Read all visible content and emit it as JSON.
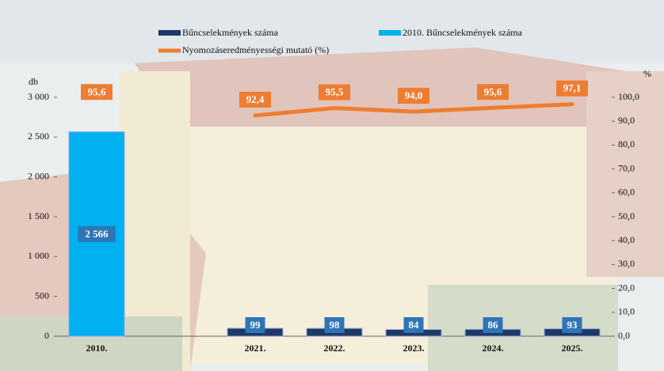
{
  "chart_data": {
    "type": "bar-line",
    "categories": [
      "2010.",
      null,
      "2021.",
      "2022.",
      "2023.",
      "2024.",
      "2025."
    ],
    "series": [
      {
        "name": "Bűncselekmények száma",
        "type": "bar",
        "color": "#1f3864",
        "values": [
          null,
          null,
          99,
          98,
          84,
          86,
          93
        ]
      },
      {
        "name": "2010. Bűncselekmények száma",
        "type": "bar",
        "color": "#00b0f0",
        "values": [
          2566,
          null,
          null,
          null,
          null,
          null,
          null
        ],
        "value_labels": [
          "2 566",
          null,
          null,
          null,
          null,
          null,
          null
        ]
      },
      {
        "name": "Nyomozáseredményességi mutató (%)",
        "type": "line",
        "axis": "y2",
        "color": "#ed7d31",
        "values": [
          95.6,
          null,
          92.4,
          95.5,
          94.0,
          95.6,
          97.1
        ],
        "value_labels": [
          "95,6",
          null,
          "92,4",
          "95,5",
          "94,0",
          "95,6",
          "97,1"
        ]
      }
    ],
    "ylabel": "db",
    "y2label": "%",
    "ylim": [
      0,
      3000
    ],
    "yticks": [
      0,
      500,
      {
        "value": 1000,
        "label": "1 000"
      },
      {
        "value": 1500,
        "label": "1 500"
      },
      {
        "value": 2000,
        "label": "2 000"
      },
      {
        "value": 2500,
        "label": "2 500"
      },
      {
        "value": 3000,
        "label": "3 000"
      }
    ],
    "y2lim": [
      0,
      100
    ],
    "y2ticks": [
      {
        "value": 0,
        "label": "0,0"
      },
      {
        "value": 10,
        "label": "10,0"
      },
      {
        "value": 20,
        "label": "20,0"
      },
      {
        "value": 30,
        "label": "30,0"
      },
      {
        "value": 40,
        "label": "40,0"
      },
      {
        "value": 50,
        "label": "50,0"
      },
      {
        "value": 60,
        "label": "60,0"
      },
      {
        "value": 70,
        "label": "70,0"
      },
      {
        "value": 80,
        "label": "80,0"
      },
      {
        "value": 90,
        "label": "90,0"
      },
      {
        "value": 100,
        "label": "100,0"
      }
    ]
  }
}
